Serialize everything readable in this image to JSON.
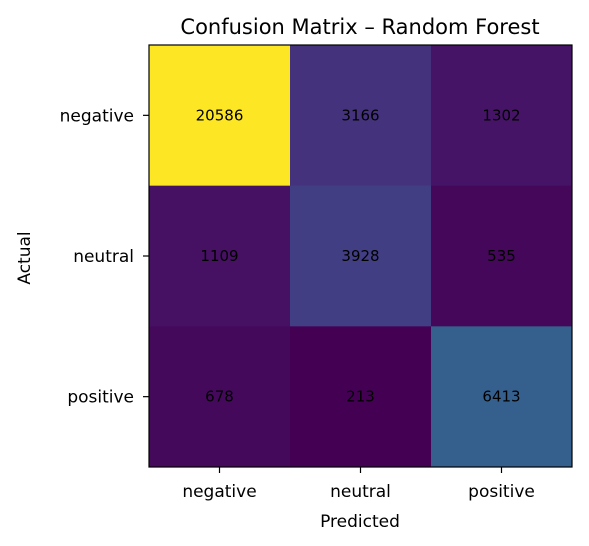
{
  "chart_data": {
    "type": "heatmap",
    "title": "Confusion Matrix – Random Forest",
    "xlabel": "Predicted",
    "ylabel": "Actual",
    "x_categories": [
      "negative",
      "neutral",
      "positive"
    ],
    "y_categories": [
      "negative",
      "neutral",
      "positive"
    ],
    "values": [
      [
        20586,
        3166,
        1302
      ],
      [
        1109,
        3928,
        535
      ],
      [
        678,
        213,
        6413
      ]
    ],
    "colormap": "viridis",
    "grid": false,
    "colorbar": false
  }
}
